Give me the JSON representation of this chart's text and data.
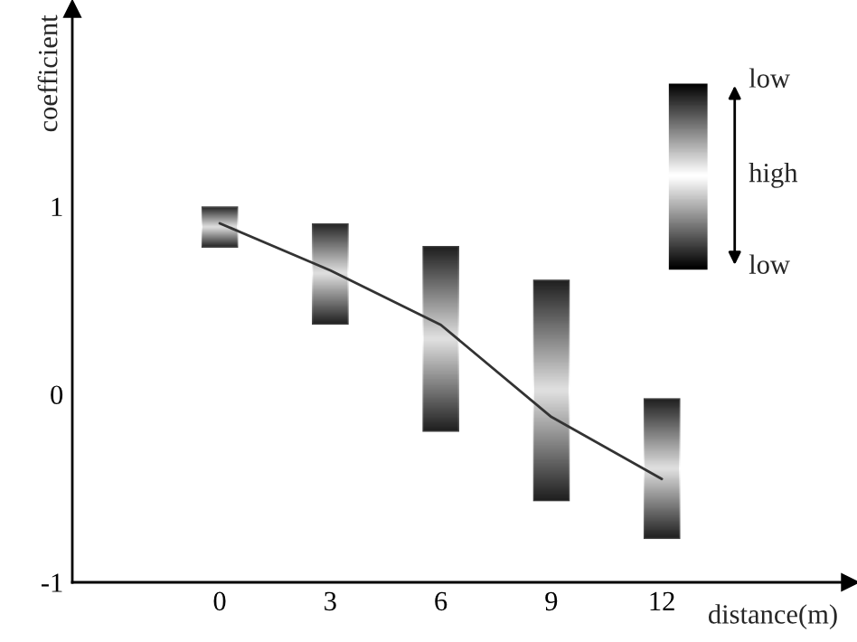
{
  "chart_data": {
    "type": "bar",
    "xlabel": "distance(m)",
    "ylabel": "coefficient",
    "x": [
      0,
      3,
      6,
      9,
      12
    ],
    "series": [
      {
        "color": "#808080",
        "base": [
          0.78,
          0.37,
          -0.2,
          -0.57,
          -0.77
        ],
        "values": [
          0.22,
          0.54,
          0.99,
          1.18,
          0.75
        ]
      },
      {
        "type": "line",
        "color": "#333333",
        "values": [
          0.91,
          0.66,
          0.37,
          -0.12,
          -0.45
        ]
      }
    ],
    "annotations": [
      "low",
      "high",
      "low"
    ],
    "xlim": [
      -4,
      17.1
    ],
    "ylim": [
      -1,
      2.05
    ],
    "xticks": [
      0,
      3,
      6,
      9,
      12
    ],
    "yticks": [
      -1,
      0,
      1
    ],
    "grid": false,
    "legend": false,
    "marker": "none",
    "line_style": "solid"
  }
}
